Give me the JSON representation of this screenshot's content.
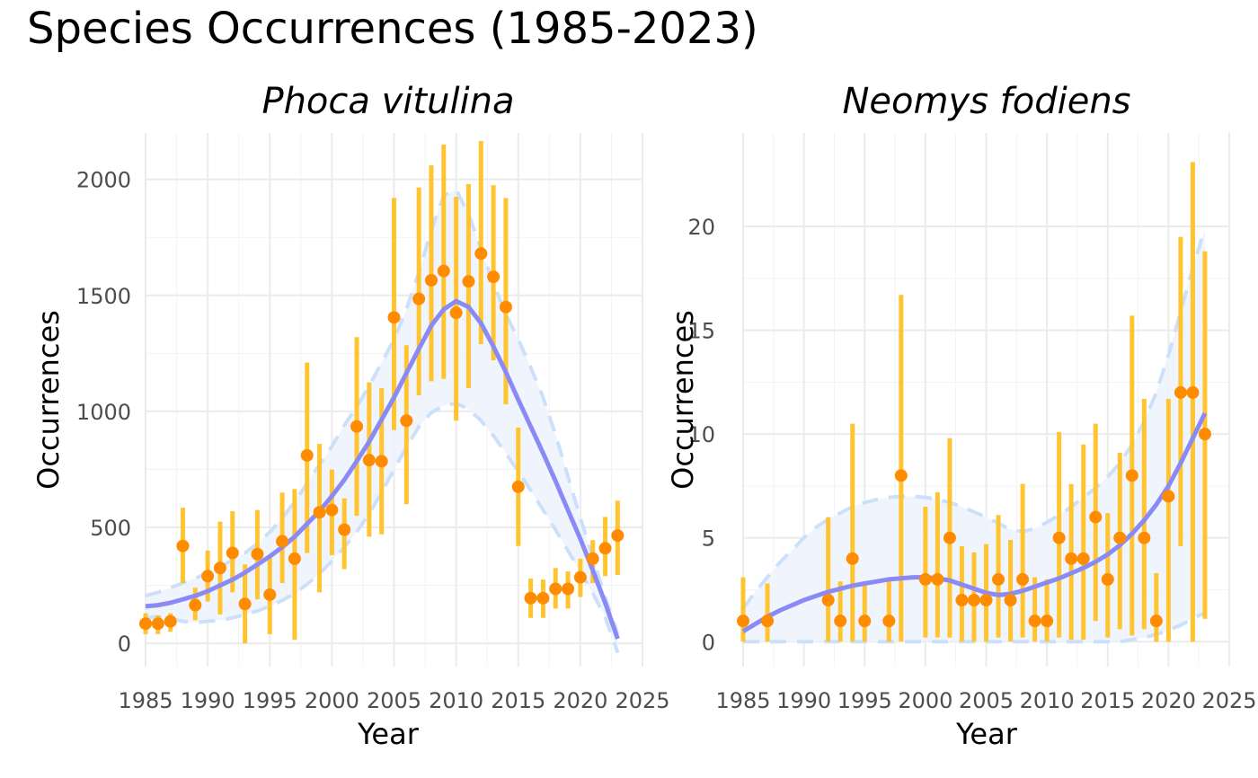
{
  "title": "Species Occurrences (1985-2023)",
  "colors": {
    "errorbar": "#FFC125",
    "point": "#FF8C00",
    "trend": "#8A8AF5",
    "band_fill": "#EEF4FD",
    "band_edge": "#CCE0FA"
  },
  "chart_data": [
    {
      "type": "scatter",
      "title": "Phoca vitulina",
      "xlabel": "Year",
      "ylabel": "Occurrences",
      "xlim": [
        1985,
        2025
      ],
      "ylim": [
        -100,
        2200
      ],
      "xticks": [
        1985,
        1990,
        1995,
        2000,
        2005,
        2010,
        2015,
        2020,
        2025
      ],
      "yticks": [
        0,
        500,
        1000,
        1500,
        2000
      ],
      "grid": true,
      "series": [
        {
          "kind": "points_with_errorbars",
          "x": [
            1985,
            1986,
            1987,
            1988,
            1989,
            1990,
            1991,
            1992,
            1993,
            1994,
            1995,
            1996,
            1997,
            1998,
            1999,
            2000,
            2001,
            2002,
            2003,
            2004,
            2005,
            2006,
            2007,
            2008,
            2009,
            2010,
            2011,
            2012,
            2013,
            2014,
            2015,
            2016,
            2017,
            2018,
            2019,
            2020,
            2021,
            2022,
            2023
          ],
          "y": [
            85,
            85,
            95,
            420,
            165,
            290,
            325,
            390,
            170,
            385,
            210,
            440,
            365,
            810,
            565,
            575,
            490,
            935,
            790,
            785,
            1405,
            960,
            1485,
            1565,
            1605,
            1425,
            1560,
            1680,
            1580,
            1450,
            675,
            195,
            195,
            235,
            235,
            285,
            365,
            410,
            465
          ],
          "lower": [
            40,
            40,
            50,
            260,
            100,
            180,
            125,
            220,
            0,
            190,
            40,
            260,
            15,
            390,
            220,
            380,
            320,
            550,
            460,
            470,
            920,
            600,
            1070,
            1130,
            1140,
            960,
            1100,
            1290,
            1220,
            1030,
            420,
            110,
            110,
            150,
            150,
            200,
            260,
            290,
            295
          ],
          "upper": [
            130,
            120,
            130,
            585,
            240,
            400,
            525,
            570,
            340,
            575,
            380,
            650,
            665,
            1210,
            860,
            750,
            625,
            1320,
            1125,
            1100,
            1920,
            1285,
            1965,
            2060,
            2150,
            1925,
            1980,
            2165,
            1975,
            1920,
            930,
            280,
            275,
            325,
            310,
            365,
            445,
            545,
            615
          ]
        },
        {
          "kind": "trend",
          "x": [
            1985,
            1986,
            1987,
            1988,
            1989,
            1990,
            1991,
            1992,
            1993,
            1994,
            1995,
            1996,
            1997,
            1998,
            1999,
            2000,
            2001,
            2002,
            2003,
            2004,
            2005,
            2006,
            2007,
            2008,
            2009,
            2010,
            2011,
            2012,
            2013,
            2014,
            2015,
            2016,
            2017,
            2018,
            2019,
            2020,
            2021,
            2022,
            2023
          ],
          "y": [
            160,
            165,
            175,
            190,
            205,
            225,
            250,
            275,
            305,
            340,
            375,
            415,
            460,
            515,
            570,
            635,
            705,
            785,
            870,
            965,
            1060,
            1165,
            1270,
            1370,
            1440,
            1475,
            1450,
            1380,
            1280,
            1170,
            1050,
            935,
            820,
            700,
            575,
            450,
            315,
            175,
            20
          ],
          "lower": [
            110,
            115,
            105,
            95,
            90,
            95,
            100,
            110,
            125,
            140,
            160,
            185,
            215,
            255,
            300,
            355,
            415,
            480,
            560,
            650,
            750,
            845,
            935,
            995,
            1025,
            1035,
            1010,
            960,
            895,
            820,
            740,
            660,
            575,
            490,
            400,
            310,
            215,
            115,
            -40
          ],
          "upper": [
            205,
            220,
            240,
            260,
            280,
            305,
            330,
            360,
            390,
            430,
            480,
            540,
            610,
            690,
            770,
            850,
            940,
            1020,
            1110,
            1210,
            1310,
            1440,
            1600,
            1780,
            1930,
            1955,
            1850,
            1700,
            1550,
            1420,
            1310,
            1190,
            1060,
            900,
            720,
            540,
            370,
            200,
            40
          ]
        }
      ]
    },
    {
      "type": "scatter",
      "title": "Neomys fodiens",
      "xlabel": "Year",
      "ylabel": "Occurrences",
      "xlim": [
        1985,
        2025
      ],
      "ylim": [
        -1.2,
        24.5
      ],
      "xticks": [
        1985,
        1990,
        1995,
        2000,
        2005,
        2010,
        2015,
        2020,
        2025
      ],
      "yticks": [
        0,
        5,
        10,
        15,
        20
      ],
      "grid": true,
      "series": [
        {
          "kind": "points_with_errorbars",
          "x": [
            1985,
            1987,
            1992,
            1993,
            1994,
            1995,
            1997,
            1998,
            2000,
            2001,
            2002,
            2003,
            2004,
            2005,
            2006,
            2007,
            2008,
            2009,
            2010,
            2011,
            2012,
            2013,
            2014,
            2015,
            2016,
            2017,
            2018,
            2019,
            2020,
            2021,
            2022,
            2023
          ],
          "y": [
            1,
            1,
            2,
            1,
            4,
            1,
            1,
            8,
            3,
            3,
            5,
            2,
            2,
            2,
            3,
            2,
            3,
            1,
            1,
            5,
            4,
            4,
            6,
            3,
            5,
            8,
            5,
            1,
            7,
            12,
            12,
            10
          ],
          "lower": [
            0,
            0,
            0,
            0,
            0,
            0,
            0,
            0,
            0.2,
            0.2,
            0.2,
            0,
            0,
            0,
            0.2,
            0,
            0.2,
            0,
            0,
            0.2,
            0.1,
            0.1,
            1,
            0.2,
            0.6,
            0.3,
            0.6,
            0,
            0,
            4.6,
            0,
            1.1
          ],
          "upper": [
            3.1,
            2.8,
            6,
            2.9,
            10.5,
            2.9,
            3.1,
            16.7,
            6.5,
            7.2,
            9.8,
            4.6,
            4.3,
            4.7,
            6.1,
            4.9,
            7.6,
            3.1,
            3,
            10.1,
            7.6,
            9.5,
            10.5,
            6.2,
            9.1,
            15.7,
            11.7,
            3.3,
            11.7,
            19.5,
            23.1,
            18.8
          ]
        },
        {
          "kind": "trend",
          "x": [
            1985,
            1986,
            1987,
            1988,
            1989,
            1990,
            1991,
            1992,
            1993,
            1994,
            1995,
            1996,
            1997,
            1998,
            1999,
            2000,
            2001,
            2002,
            2003,
            2004,
            2005,
            2006,
            2007,
            2008,
            2009,
            2010,
            2011,
            2012,
            2013,
            2014,
            2015,
            2016,
            2017,
            2018,
            2019,
            2020,
            2021,
            2022,
            2023
          ],
          "y": [
            0.5,
            0.85,
            1.2,
            1.5,
            1.75,
            2.0,
            2.2,
            2.4,
            2.55,
            2.7,
            2.8,
            2.9,
            3.0,
            3.05,
            3.1,
            3.1,
            3.05,
            2.95,
            2.75,
            2.55,
            2.35,
            2.25,
            2.3,
            2.45,
            2.65,
            2.85,
            3.05,
            3.3,
            3.55,
            3.85,
            4.2,
            4.65,
            5.2,
            5.85,
            6.6,
            7.5,
            8.6,
            9.8,
            11.0
          ],
          "lower": [
            0,
            0,
            0,
            0,
            0,
            0,
            0,
            0,
            0,
            0,
            0,
            0,
            0,
            0,
            0,
            0,
            0,
            0,
            0,
            0,
            0,
            0,
            0,
            0,
            0,
            0,
            0,
            0,
            0,
            0,
            0,
            0,
            0.1,
            0.2,
            0.35,
            0.55,
            0.8,
            1.1,
            1.4
          ],
          "upper": [
            1.6,
            2.4,
            3.1,
            3.8,
            4.4,
            5.0,
            5.5,
            5.9,
            6.2,
            6.5,
            6.7,
            6.85,
            6.95,
            7.0,
            7.0,
            6.95,
            6.85,
            6.7,
            6.5,
            6.25,
            6.0,
            5.7,
            5.4,
            5.3,
            5.45,
            5.75,
            6.1,
            6.5,
            6.95,
            7.4,
            7.95,
            8.6,
            9.5,
            10.6,
            12.0,
            13.8,
            15.9,
            18.0,
            19.9
          ]
        }
      ]
    }
  ]
}
